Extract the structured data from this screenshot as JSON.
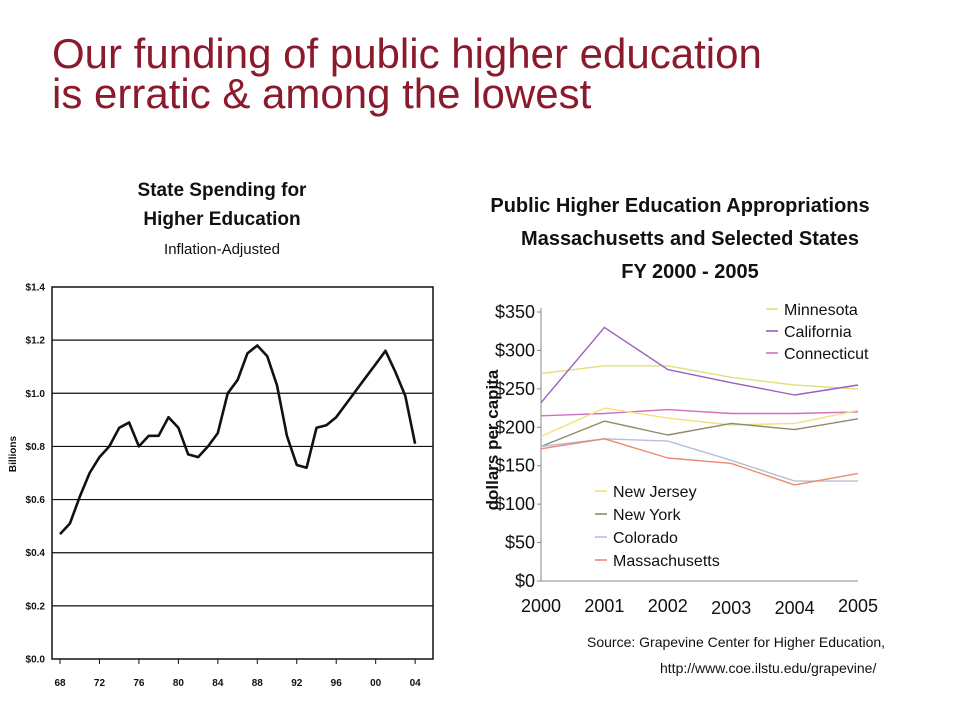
{
  "slide": {
    "title_line1": "Our funding of public higher education",
    "title_line2": "is erratic & among the lowest",
    "title_color": "#8b1a2c"
  },
  "chart_data": [
    {
      "type": "line",
      "title_lines": [
        "State Spending for",
        "Higher Education"
      ],
      "subtitle": "Inflation-Adjusted",
      "ylabel": "Billions",
      "xlabel": "",
      "ylim": [
        0,
        1.4
      ],
      "xlim": [
        1968,
        2005
      ],
      "grid": true,
      "yticks": [
        0.0,
        0.2,
        0.4,
        0.6,
        0.8,
        1.0,
        1.2,
        1.4
      ],
      "ytick_labels": [
        "$0.0",
        "$0.2",
        "$0.4",
        "$0.6",
        "$0.8",
        "$1.0",
        "$1.2",
        "$1.4"
      ],
      "xtick_labels": [
        "68",
        "72",
        "76",
        "80",
        "84",
        "88",
        "92",
        "96",
        "00",
        "04"
      ],
      "xticks": [
        1968,
        1972,
        1976,
        1980,
        1984,
        1988,
        1992,
        1996,
        2000,
        2004
      ],
      "series": [
        {
          "color": "#111111",
          "x": [
            1968,
            1969,
            1970,
            1971,
            1972,
            1973,
            1974,
            1975,
            1976,
            1977,
            1978,
            1979,
            1980,
            1981,
            1982,
            1983,
            1984,
            1985,
            1986,
            1987,
            1988,
            1989,
            1990,
            1991,
            1992,
            1993,
            1994,
            1995,
            1996,
            1997,
            1998,
            1999,
            2000,
            2001,
            2002,
            2003,
            2004
          ],
          "values": [
            0.47,
            0.51,
            0.61,
            0.7,
            0.76,
            0.8,
            0.87,
            0.89,
            0.8,
            0.84,
            0.84,
            0.91,
            0.87,
            0.77,
            0.76,
            0.8,
            0.85,
            1.0,
            1.05,
            1.15,
            1.18,
            1.14,
            1.03,
            0.84,
            0.73,
            0.72,
            0.87,
            0.88,
            0.91,
            0.96,
            1.01,
            1.06,
            1.11,
            1.16,
            1.08,
            0.99,
            0.81
          ]
        }
      ]
    },
    {
      "type": "line",
      "title_lines": [
        "Public Higher Education Appropriations",
        "Massachusetts and Selected States",
        "FY 2000 - 2005"
      ],
      "ylabel": "dollars per capita",
      "xlabel": "",
      "ylim": [
        0,
        350
      ],
      "grid": false,
      "yticks": [
        0,
        50,
        100,
        150,
        200,
        250,
        300,
        350
      ],
      "ytick_labels": [
        "$0",
        "$50",
        "$100",
        "$150",
        "$200",
        "$250",
        "$300",
        "$350"
      ],
      "categories": [
        "2000",
        "2001",
        "2002",
        "2003",
        "2004",
        "2005"
      ],
      "legend_top": [
        {
          "series_index": 0
        },
        {
          "series_index": 1
        },
        {
          "series_index": 2
        }
      ],
      "legend_bottom": [
        {
          "series_index": 3
        },
        {
          "series_index": 4
        },
        {
          "series_index": 5
        },
        {
          "series_index": 6
        }
      ],
      "series": [
        {
          "name": "Minnesota",
          "color": "#e2e07a",
          "values": [
            270,
            280,
            280,
            265,
            255,
            250
          ]
        },
        {
          "name": "California",
          "color": "#9b5fc0",
          "values": [
            232,
            330,
            275,
            258,
            242,
            255
          ]
        },
        {
          "name": "Connecticut",
          "color": "#d070c0",
          "values": [
            215,
            218,
            223,
            218,
            218,
            220
          ]
        },
        {
          "name": "New Jersey",
          "color": "#f1e27a",
          "values": [
            188,
            225,
            212,
            203,
            205,
            222
          ]
        },
        {
          "name": "New York",
          "color": "#8c8c6a",
          "values": [
            175,
            208,
            190,
            205,
            197,
            211
          ]
        },
        {
          "name": "Colorado",
          "color": "#b4c0d8",
          "values": [
            175,
            185,
            182,
            157,
            130,
            130
          ]
        },
        {
          "name": "Massachusetts",
          "color": "#ee8a70",
          "values": [
            172,
            185,
            160,
            153,
            125,
            140
          ]
        }
      ],
      "source_line1": "Source: Grapevine Center for Higher Education,",
      "source_line2": "http://www.coe.ilstu.edu/grapevine/"
    }
  ]
}
